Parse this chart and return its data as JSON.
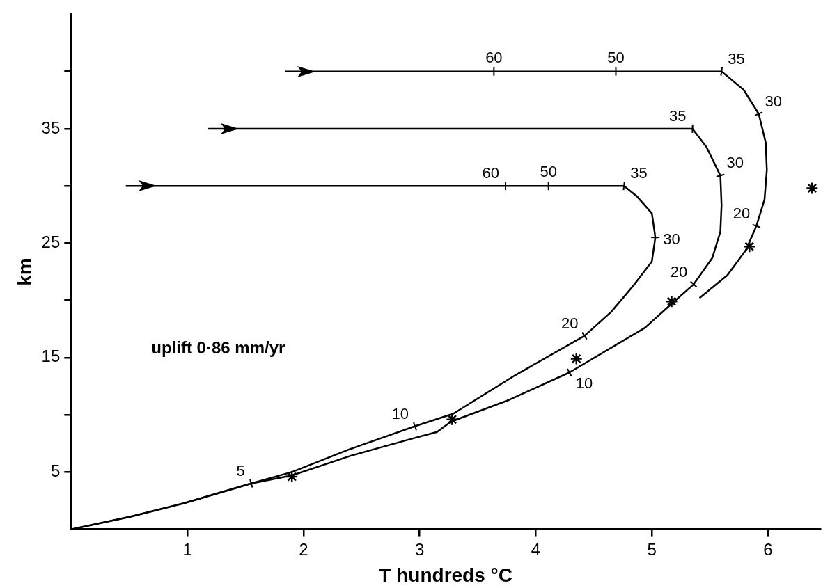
{
  "chart_data": {
    "type": "line",
    "xlabel": "T hundreds °C",
    "ylabel": "km",
    "xlim": [
      0,
      6.45
    ],
    "ylim": [
      0,
      45
    ],
    "xticks": [
      1,
      2,
      3,
      4,
      5,
      6
    ],
    "yticks": [
      5,
      {
        "value": 10,
        "label": null
      },
      15,
      {
        "value": 20,
        "label": null
      },
      25,
      {
        "value": 30,
        "label": null
      },
      35,
      {
        "value": 40,
        "label": null
      }
    ],
    "grid": false,
    "legend": false,
    "marker": "none",
    "line_style": "solid",
    "series": [
      {
        "color": "#000000",
        "x": [
          0.47,
          3.74,
          4.11,
          4.76,
          4.87,
          5.0,
          5.03,
          5.0,
          4.85,
          4.65,
          4.42,
          3.83,
          3.29,
          2.96,
          2.4,
          1.9,
          1.55,
          0.98,
          0.51,
          0
        ],
        "values": [
          30,
          30,
          30,
          30,
          29.1,
          27.6,
          25.5,
          23.4,
          21.4,
          19.0,
          16.9,
          13.5,
          10.1,
          9.0,
          7.0,
          5.0,
          4.0,
          2.3,
          1.1,
          0
        ]
      },
      {
        "color": "#000000",
        "x": [
          1.18,
          5.35,
          5.47,
          5.59,
          5.6,
          5.59,
          5.52,
          5.36,
          5.17,
          4.94,
          4.29,
          3.77,
          3.27,
          3.15,
          2.93,
          2.4,
          1.9,
          1.55,
          0.98,
          0.51,
          0
        ],
        "values": [
          35,
          35,
          33.4,
          30.9,
          28.3,
          26.0,
          23.7,
          21.4,
          19.7,
          17.6,
          13.7,
          11.3,
          9.4,
          8.5,
          7.9,
          6.4,
          4.7,
          4.0,
          2.3,
          1.1,
          0
        ]
      },
      {
        "color": "#000000",
        "x": [
          1.84,
          3.64,
          4.69,
          5.6,
          5.79,
          5.92,
          5.98,
          5.99,
          5.97,
          5.9,
          5.81,
          5.65,
          5.41
        ],
        "values": [
          40,
          40,
          40,
          40,
          38.4,
          36.3,
          33.8,
          31.4,
          28.8,
          26.5,
          24.4,
          22.2,
          20.2
        ]
      },
      {
        "type": "scatter",
        "marker": "cross",
        "color": "#000000",
        "x": [
          1.9,
          3.28,
          4.35,
          5.17,
          5.84,
          6.38
        ],
        "values": [
          4.6,
          9.6,
          14.9,
          19.9,
          24.7,
          29.8
        ]
      }
    ],
    "annotations": [
      "uplift 0·86 mm/yr",
      {
        "text": "5",
        "x": 1.55,
        "y": 4.0
      },
      {
        "text": "10",
        "x": 2.96,
        "y": 9.0
      },
      {
        "text": "20",
        "x": 4.42,
        "y": 16.9
      },
      {
        "text": "30",
        "x": 5.03,
        "y": 25.5
      },
      {
        "text": "35",
        "x": 4.76,
        "y": 30
      },
      {
        "text": "50",
        "x": 4.11,
        "y": 30
      },
      {
        "text": "60",
        "x": 3.74,
        "y": 30
      },
      {
        "text": "10",
        "x": 4.29,
        "y": 13.7
      },
      {
        "text": "20",
        "x": 5.36,
        "y": 21.4
      },
      {
        "text": "30",
        "x": 5.59,
        "y": 30.9
      },
      {
        "text": "35",
        "x": 5.35,
        "y": 35
      },
      {
        "text": "60",
        "x": 3.64,
        "y": 40
      },
      {
        "text": "50",
        "x": 4.69,
        "y": 40
      },
      {
        "text": "35",
        "x": 5.6,
        "y": 40
      },
      {
        "text": "30",
        "x": 5.92,
        "y": 36.3
      },
      {
        "text": "20",
        "x": 5.9,
        "y": 26.5
      }
    ]
  }
}
